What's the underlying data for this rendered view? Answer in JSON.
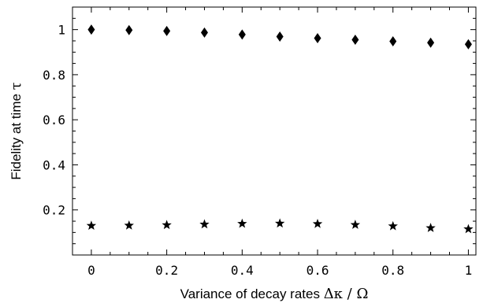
{
  "chart_data": {
    "type": "scatter",
    "title": "",
    "xlabel": {
      "text": "Variance of decay rates ",
      "math": "Δκ / Ω"
    },
    "ylabel": {
      "text": "Fidelity at time ",
      "math": "τ"
    },
    "xlim": [
      -0.05,
      1.02
    ],
    "ylim": [
      0.0,
      1.1
    ],
    "xticks": [
      {
        "value": 0,
        "label": "0"
      },
      {
        "value": 0.2,
        "label": "0.2"
      },
      {
        "value": 0.4,
        "label": "0.4"
      },
      {
        "value": 0.6,
        "label": "0.6"
      },
      {
        "value": 0.8,
        "label": "0.8"
      },
      {
        "value": 1,
        "label": "1"
      }
    ],
    "yticks": [
      {
        "value": 0.2,
        "label": "0.2"
      },
      {
        "value": 0.4,
        "label": "0.4"
      },
      {
        "value": 0.6,
        "label": "0.6"
      },
      {
        "value": 0.8,
        "label": "0.8"
      },
      {
        "value": 1,
        "label": "1"
      }
    ],
    "grid": false,
    "x": [
      0,
      0.1,
      0.2,
      0.3,
      0.4,
      0.5,
      0.6,
      0.7,
      0.8,
      0.9,
      1.0
    ],
    "series": [
      {
        "marker": "diamond",
        "color": "#000000",
        "values": [
          1.0,
          0.998,
          0.994,
          0.987,
          0.978,
          0.969,
          0.962,
          0.955,
          0.948,
          0.942,
          0.935
        ]
      },
      {
        "marker": "star",
        "color": "#000000",
        "values": [
          0.13,
          0.131,
          0.133,
          0.136,
          0.139,
          0.14,
          0.138,
          0.134,
          0.128,
          0.12,
          0.115
        ]
      }
    ]
  }
}
